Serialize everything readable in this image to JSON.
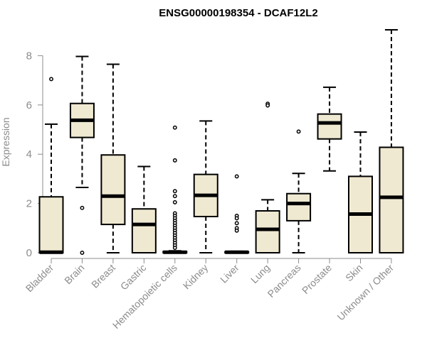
{
  "chart_data": {
    "type": "box",
    "title": "ENSG00000198354 - DCAF12L2",
    "xlabel": "",
    "ylabel": "Expression",
    "ylim": [
      0,
      9.1
    ],
    "yticks": [
      0,
      2,
      4,
      6,
      8
    ],
    "box_color": "#efe9d2",
    "categories": [
      "Bladder",
      "Brain",
      "Breast",
      "Gastric",
      "Hematopoietic cells",
      "Kidney",
      "Liver",
      "Lung",
      "Pancreas",
      "Prostate",
      "Skin",
      "Unknown / Other"
    ],
    "boxes": [
      {
        "name": "Bladder",
        "whisker_low": 0,
        "q1": 0,
        "median": 0.02,
        "q3": 2.27,
        "whisker_high": 5.22,
        "outliers": [
          7.05
        ]
      },
      {
        "name": "Brain",
        "whisker_low": 2.65,
        "q1": 4.68,
        "median": 5.38,
        "q3": 6.06,
        "whisker_high": 7.97,
        "outliers": [
          1.82,
          0.0
        ]
      },
      {
        "name": "Breast",
        "whisker_low": 0,
        "q1": 1.15,
        "median": 2.3,
        "q3": 3.97,
        "whisker_high": 7.65,
        "outliers": []
      },
      {
        "name": "Gastric",
        "whisker_low": 0,
        "q1": 0.0,
        "median": 1.15,
        "q3": 1.78,
        "whisker_high": 3.5,
        "outliers": []
      },
      {
        "name": "Hematopoietic cells",
        "whisker_low": 0,
        "q1": 0,
        "median": 0.02,
        "q3": 0.05,
        "whisker_high": 0.08,
        "outliers": [
          5.08,
          3.75,
          2.5,
          2.3,
          2.05,
          1.6,
          1.5,
          1.4,
          1.3,
          1.2,
          1.1,
          1.0,
          0.9,
          0.8,
          0.7,
          0.6,
          0.5,
          0.4,
          0.3,
          0.2
        ]
      },
      {
        "name": "Kidney",
        "whisker_low": 0,
        "q1": 1.47,
        "median": 2.33,
        "q3": 3.18,
        "whisker_high": 5.35,
        "outliers": []
      },
      {
        "name": "Liver",
        "whisker_low": 0,
        "q1": 0,
        "median": 0.02,
        "q3": 0.04,
        "whisker_high": 0.06,
        "outliers": [
          3.1,
          1.5,
          1.4,
          1.2,
          1.0,
          0.9
        ]
      },
      {
        "name": "Lung",
        "whisker_low": 0,
        "q1": 0.0,
        "median": 0.95,
        "q3": 1.7,
        "whisker_high": 2.15,
        "outliers": [
          6.05,
          5.98
        ]
      },
      {
        "name": "Pancreas",
        "whisker_low": 0,
        "q1": 1.3,
        "median": 2.0,
        "q3": 2.4,
        "whisker_high": 3.22,
        "outliers": [
          4.92
        ]
      },
      {
        "name": "Prostate",
        "whisker_low": 3.32,
        "q1": 4.62,
        "median": 5.27,
        "q3": 5.63,
        "whisker_high": 6.72,
        "outliers": []
      },
      {
        "name": "Skin",
        "whisker_low": 0,
        "q1": 0,
        "median": 1.57,
        "q3": 3.1,
        "whisker_high": 4.9,
        "outliers": []
      },
      {
        "name": "Unknown / Other",
        "whisker_low": 0,
        "q1": 0,
        "median": 2.25,
        "q3": 4.28,
        "whisker_high": 9.05,
        "outliers": []
      }
    ]
  }
}
